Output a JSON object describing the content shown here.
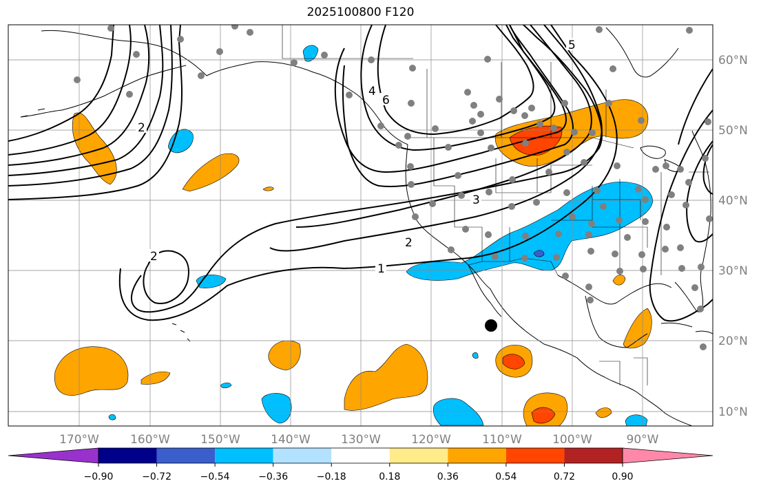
{
  "title": "2025100800 F120",
  "lon_labels": [
    "170°W",
    "160°W",
    "150°W",
    "140°W",
    "130°W",
    "120°W",
    "110°W",
    "100°W",
    "90°W"
  ],
  "lat_labels": [
    "60°N",
    "50°N",
    "40°N",
    "30°N",
    "20°N",
    "10°N"
  ],
  "colorbar": {
    "ticks": [
      "−0.90",
      "−0.72",
      "−0.54",
      "−0.36",
      "−0.18",
      "0.18",
      "0.36",
      "0.54",
      "0.72",
      "0.90"
    ],
    "colors": [
      "#9932cc",
      "#00008b",
      "#3a5fcd",
      "#00bfff",
      "#b2e2ff",
      "#ffffff",
      "#ffeb8a",
      "#ffa500",
      "#ff4500",
      "#b22222",
      "#ff88aa"
    ]
  },
  "contour_labels": {
    "c1": "1",
    "c2a": "2",
    "c2b": "2",
    "c2c": "2",
    "c3": "3",
    "c4": "4",
    "c5": "5",
    "c6": "6"
  },
  "colors": {
    "positive": "#ffa500",
    "strong_positive": "#ff4500",
    "negative": "#00bfff",
    "strong_negative": "#3a5fcd",
    "station": "#808080",
    "contour": "#000000"
  }
}
